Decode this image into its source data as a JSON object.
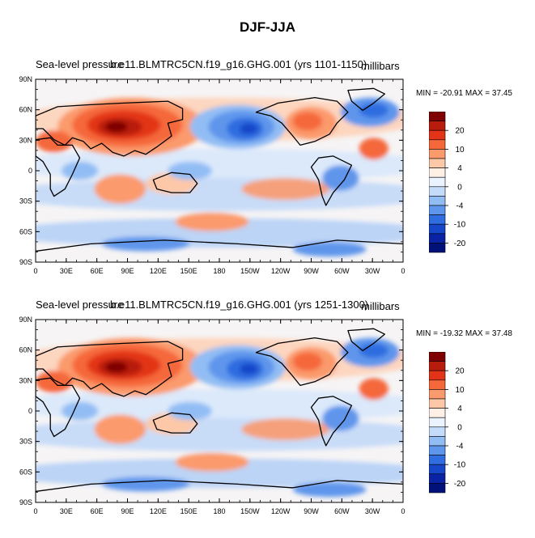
{
  "figure_title": "DJF-JJA",
  "panels": [
    {
      "label_left": "Sea-level pressure",
      "label_case": "b.e11.BLMTRC5CN.f19_g16.GHG.001 (yrs 1101-1150)",
      "units": "millibars",
      "stats": "MIN = -20.91 MAX =  37.45"
    },
    {
      "label_left": "Sea-level pressure",
      "label_case": "b.e11.BLMTRC5CN.f19_g16.GHG.001 (yrs 1251-1300)",
      "units": "millibars",
      "stats": "MIN = -19.32 MAX =  37.48"
    }
  ],
  "axes": {
    "lat_labels": [
      "90N",
      "60N",
      "30N",
      "0",
      "30S",
      "60S",
      "90S"
    ],
    "lon_labels": [
      "0",
      "30E",
      "60E",
      "90E",
      "120E",
      "150E",
      "180",
      "150W",
      "120W",
      "90W",
      "60W",
      "30W",
      "0"
    ]
  },
  "colorbar": {
    "labels": [
      "20",
      "10",
      "4",
      "0",
      "-4",
      "-10",
      "-20"
    ],
    "colors": [
      "#7f0000",
      "#b71c0c",
      "#e33419",
      "#f5683a",
      "#fb9a6c",
      "#fdc8a8",
      "#fff0e6",
      "#eaf3ff",
      "#c4dcfa",
      "#92bdf4",
      "#5e96ec",
      "#2f6de0",
      "#1646c9",
      "#0a22a4",
      "#00117a"
    ]
  }
}
